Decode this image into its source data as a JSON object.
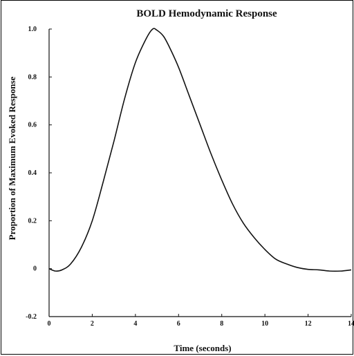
{
  "chart_data": {
    "type": "line",
    "title": "BOLD Hemodynamic Response",
    "xlabel": "Time (seconds)",
    "ylabel": "Proportion of Maximum Evoked Response",
    "xlim": [
      0,
      14
    ],
    "ylim": [
      -0.2,
      1.0
    ],
    "x_ticks": [
      "0",
      "2",
      "4",
      "6",
      "8",
      "10",
      "12",
      "14"
    ],
    "y_ticks": [
      "-0.2",
      "0",
      "0.2",
      "0.4",
      "0.6",
      "0.8",
      "1.0"
    ],
    "grid": false,
    "line_color": "#111111",
    "series": [
      {
        "x": [
          0,
          0.3,
          0.6,
          1.0,
          1.5,
          2.0,
          2.5,
          3.0,
          3.5,
          4.0,
          4.5,
          4.8,
          5.0,
          5.3,
          5.6,
          6.0,
          6.5,
          7.0,
          7.5,
          8.0,
          8.5,
          9.0,
          9.5,
          10.0,
          10.5,
          11.0,
          11.5,
          12.0,
          12.5,
          13.0,
          13.5,
          14.0
        ],
        "y": [
          0.0,
          -0.01,
          -0.005,
          0.02,
          0.09,
          0.2,
          0.36,
          0.53,
          0.71,
          0.86,
          0.96,
          1.0,
          0.995,
          0.97,
          0.92,
          0.84,
          0.72,
          0.6,
          0.48,
          0.37,
          0.27,
          0.19,
          0.13,
          0.08,
          0.04,
          0.02,
          0.005,
          -0.003,
          -0.005,
          -0.01,
          -0.01,
          -0.005
        ]
      }
    ]
  }
}
